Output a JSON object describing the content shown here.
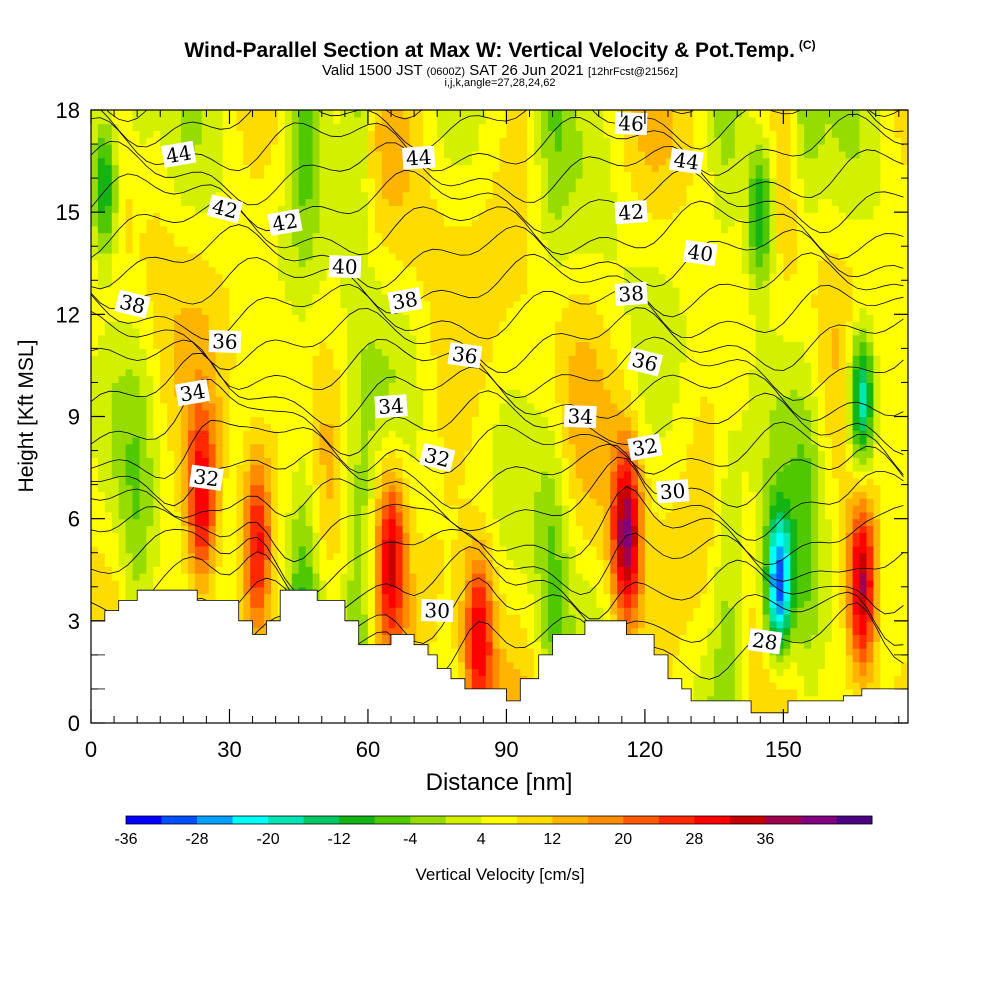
{
  "header": {
    "title": "Wind-Parallel Section at Max W: Vertical Velocity & Pot.Temp.",
    "copyright": "(C)",
    "subtitle_main": "Valid 1500 JST",
    "subtitle_utc": "(0600Z)",
    "subtitle_date": "SAT 26 Jun 2021",
    "subtitle_fcst": "[12hrFcst@2156z]",
    "params": "i,j,k,angle=27,28,24,62"
  },
  "chart_data": {
    "type": "heatmap",
    "title": "Wind-Parallel Section at Max W: Vertical Velocity & Pot.Temp.",
    "xlabel": "Distance [nm]",
    "ylabel": "Height [Kft MSL]",
    "xlim": [
      0,
      177
    ],
    "ylim": [
      0,
      18
    ],
    "x_ticks": [
      0,
      30,
      60,
      90,
      120,
      150
    ],
    "y_ticks": [
      0,
      3,
      6,
      9,
      12,
      15,
      18
    ],
    "colorbar": {
      "label": "Vertical Velocity [cm/s]",
      "tick_labels": [
        "-36",
        "-28",
        "-20",
        "-12",
        "-4",
        "4",
        "12",
        "20",
        "28",
        "36"
      ],
      "colors": [
        "#0000ff",
        "#0050ff",
        "#00a0ff",
        "#00ffff",
        "#00e6b4",
        "#00c864",
        "#14b414",
        "#50c800",
        "#96dc00",
        "#d2f000",
        "#ffff00",
        "#ffdc00",
        "#ffb400",
        "#ff8c00",
        "#ff5a00",
        "#ff2800",
        "#ff0000",
        "#c80000",
        "#a00050",
        "#800080",
        "#4b0082"
      ]
    },
    "theta_contour_labels": [
      {
        "value": "44",
        "x": 19,
        "y": 16.7
      },
      {
        "value": "44",
        "x": 71,
        "y": 16.6
      },
      {
        "value": "46",
        "x": 117,
        "y": 17.6
      },
      {
        "value": "44",
        "x": 129,
        "y": 16.5
      },
      {
        "value": "42",
        "x": 29,
        "y": 15.1
      },
      {
        "value": "42",
        "x": 42,
        "y": 14.7
      },
      {
        "value": "42",
        "x": 117,
        "y": 15.0
      },
      {
        "value": "40",
        "x": 55,
        "y": 13.4
      },
      {
        "value": "40",
        "x": 132,
        "y": 13.8
      },
      {
        "value": "38",
        "x": 9,
        "y": 12.3
      },
      {
        "value": "38",
        "x": 68,
        "y": 12.4
      },
      {
        "value": "38",
        "x": 117,
        "y": 12.6
      },
      {
        "value": "36",
        "x": 29,
        "y": 11.2
      },
      {
        "value": "36",
        "x": 81,
        "y": 10.8
      },
      {
        "value": "36",
        "x": 120,
        "y": 10.6
      },
      {
        "value": "34",
        "x": 22,
        "y": 9.7
      },
      {
        "value": "34",
        "x": 65,
        "y": 9.3
      },
      {
        "value": "34",
        "x": 106,
        "y": 9.0
      },
      {
        "value": "32",
        "x": 25,
        "y": 7.2
      },
      {
        "value": "32",
        "x": 75,
        "y": 7.8
      },
      {
        "value": "32",
        "x": 120,
        "y": 8.1
      },
      {
        "value": "30",
        "x": 126,
        "y": 6.8
      },
      {
        "value": "30",
        "x": 75,
        "y": 3.3
      },
      {
        "value": "28",
        "x": 146,
        "y": 2.4
      }
    ],
    "terrain_top": [
      [
        0,
        3.0
      ],
      [
        3,
        3.0
      ],
      [
        3,
        3.3
      ],
      [
        6,
        3.3
      ],
      [
        6,
        3.6
      ],
      [
        10,
        3.6
      ],
      [
        10,
        3.9
      ],
      [
        23,
        3.9
      ],
      [
        23,
        3.6
      ],
      [
        32,
        3.6
      ],
      [
        32,
        3.0
      ],
      [
        35,
        3.0
      ],
      [
        35,
        2.6
      ],
      [
        38,
        2.6
      ],
      [
        38,
        3.0
      ],
      [
        41,
        3.0
      ],
      [
        41,
        3.9
      ],
      [
        49,
        3.9
      ],
      [
        49,
        3.6
      ],
      [
        55,
        3.6
      ],
      [
        55,
        3.0
      ],
      [
        58,
        3.0
      ],
      [
        58,
        2.3
      ],
      [
        65,
        2.3
      ],
      [
        65,
        2.6
      ],
      [
        70,
        2.6
      ],
      [
        70,
        2.3
      ],
      [
        73,
        2.3
      ],
      [
        73,
        2.0
      ],
      [
        75,
        2.0
      ],
      [
        75,
        1.6
      ],
      [
        78,
        1.6
      ],
      [
        78,
        1.3
      ],
      [
        81,
        1.3
      ],
      [
        81,
        1.0
      ],
      [
        90,
        1.0
      ],
      [
        90,
        0.65
      ],
      [
        93,
        0.65
      ],
      [
        93,
        1.3
      ],
      [
        97,
        1.3
      ],
      [
        97,
        2.0
      ],
      [
        100,
        2.0
      ],
      [
        100,
        2.6
      ],
      [
        107,
        2.6
      ],
      [
        107,
        3.0
      ],
      [
        116,
        3.0
      ],
      [
        116,
        2.6
      ],
      [
        122,
        2.6
      ],
      [
        122,
        2.0
      ],
      [
        125,
        2.0
      ],
      [
        125,
        1.3
      ],
      [
        128,
        1.3
      ],
      [
        128,
        1.0
      ],
      [
        130,
        1.0
      ],
      [
        130,
        0.65
      ],
      [
        143,
        0.65
      ],
      [
        143,
        0.3
      ],
      [
        151,
        0.3
      ],
      [
        151,
        0.65
      ],
      [
        163,
        0.65
      ],
      [
        163,
        0.8
      ],
      [
        167,
        0.8
      ],
      [
        167,
        1.0
      ],
      [
        177,
        1.0
      ]
    ],
    "updraft_cores": [
      {
        "x": 24,
        "y": 6.5,
        "max": 28
      },
      {
        "x": 36,
        "y": 5.3,
        "max": 28
      },
      {
        "x": 65,
        "y": 5.0,
        "max": 28
      },
      {
        "x": 84,
        "y": 2.5,
        "max": 28
      },
      {
        "x": 116,
        "y": 5.5,
        "max": 36
      },
      {
        "x": 167,
        "y": 4.0,
        "max": 36
      }
    ],
    "downdraft_cores": [
      {
        "x": 3,
        "y": 15.8,
        "min": -20
      },
      {
        "x": 149,
        "y": 4.0,
        "min": -36
      },
      {
        "x": 167,
        "y": 9.5,
        "min": -28
      },
      {
        "x": 145,
        "y": 15.0,
        "min": -20
      }
    ]
  }
}
